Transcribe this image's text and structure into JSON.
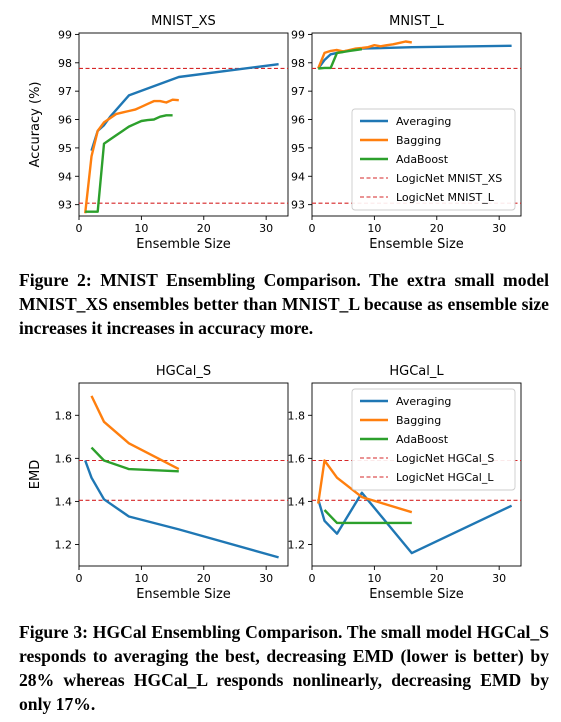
{
  "figures": [
    {
      "caption": "Figure 2: MNIST Ensembling Comparison. The extra small model MNIST_XS ensembles better than MNIST_L because as ensemble size increases it increases in accuracy more.",
      "ylabel": "Accuracy (%)",
      "xlabel": "Ensemble Size"
    },
    {
      "caption": "Figure 3: HGCal Ensembling Comparison. The small model HGCal_S responds to averaging the best, decreasing EMD (lower is better) by 28% whereas HGCal_L responds nonlinearly, decreasing EMD by only 17%.",
      "ylabel": "EMD",
      "xlabel": "Ensemble Size"
    }
  ],
  "chart_data": [
    {
      "type": "line",
      "title": "MNIST_XS",
      "xlabel": "Ensemble Size",
      "ylabel": "Accuracy (%)",
      "xlim": [
        0,
        33.5
      ],
      "ylim": [
        92.6,
        99.05
      ],
      "xticks": [
        0,
        10,
        20,
        30
      ],
      "yticks": [
        93,
        94,
        95,
        96,
        97,
        98,
        99
      ],
      "legend": "none",
      "series": [
        {
          "name": "Averaging",
          "color": "#1f77b4",
          "x": [
            2,
            3,
            4,
            5,
            8,
            16,
            32
          ],
          "y": [
            94.9,
            95.6,
            95.8,
            96.1,
            96.85,
            97.5,
            97.95
          ]
        },
        {
          "name": "Bagging",
          "color": "#ff7f0e",
          "x": [
            1,
            2,
            3,
            4,
            5,
            6,
            7,
            8,
            9,
            10,
            11,
            12,
            13,
            14,
            15,
            16
          ],
          "y": [
            92.7,
            94.7,
            95.6,
            95.9,
            96.05,
            96.2,
            96.25,
            96.3,
            96.35,
            96.45,
            96.55,
            96.65,
            96.65,
            96.6,
            96.7,
            96.68
          ]
        },
        {
          "name": "AdaBoost",
          "color": "#2ca02c",
          "x": [
            1,
            2,
            3,
            4,
            5,
            6,
            7,
            8,
            9,
            10,
            11,
            12,
            13,
            14,
            15
          ],
          "y": [
            92.75,
            92.75,
            92.75,
            95.15,
            95.3,
            95.45,
            95.6,
            95.75,
            95.85,
            95.95,
            95.98,
            96.0,
            96.1,
            96.15,
            96.15
          ]
        }
      ],
      "reference_lines": [
        {
          "name": "LogicNet MNIST_XS",
          "color": "#d62728",
          "y": 93.05
        },
        {
          "name": "LogicNet MNIST_L",
          "color": "#d62728",
          "y": 97.8
        }
      ]
    },
    {
      "type": "line",
      "title": "MNIST_L",
      "xlabel": "Ensemble Size",
      "ylabel": "",
      "xlim": [
        0,
        33.5
      ],
      "ylim": [
        92.6,
        99.05
      ],
      "xticks": [
        0,
        10,
        20,
        30
      ],
      "yticks": [
        93,
        94,
        95,
        96,
        97,
        98,
        99
      ],
      "legend": "lower-right",
      "series": [
        {
          "name": "Averaging",
          "color": "#1f77b4",
          "x": [
            1,
            2,
            3,
            4,
            5,
            8,
            16,
            32
          ],
          "y": [
            97.8,
            98.1,
            98.3,
            98.35,
            98.4,
            98.5,
            98.55,
            98.6
          ]
        },
        {
          "name": "Bagging",
          "color": "#ff7f0e",
          "x": [
            1,
            2,
            3,
            4,
            5,
            6,
            7,
            8,
            9,
            10,
            11,
            12,
            13,
            14,
            15,
            16
          ],
          "y": [
            97.8,
            98.35,
            98.42,
            98.45,
            98.4,
            98.45,
            98.5,
            98.52,
            98.55,
            98.62,
            98.58,
            98.62,
            98.65,
            98.7,
            98.75,
            98.72
          ]
        },
        {
          "name": "AdaBoost",
          "color": "#2ca02c",
          "x": [
            1,
            2,
            3,
            4,
            5,
            6,
            7,
            8
          ],
          "y": [
            97.8,
            97.82,
            97.82,
            98.35,
            98.38,
            98.42,
            98.45,
            98.48
          ]
        }
      ],
      "reference_lines": [
        {
          "name": "LogicNet MNIST_XS",
          "color": "#d62728",
          "y": 93.05
        },
        {
          "name": "LogicNet MNIST_L",
          "color": "#d62728",
          "y": 97.8
        }
      ]
    },
    {
      "type": "line",
      "title": "HGCal_S",
      "xlabel": "Ensemble Size",
      "ylabel": "EMD",
      "xlim": [
        0,
        33.5
      ],
      "ylim": [
        1.1,
        1.95
      ],
      "xticks": [
        0,
        10,
        20,
        30
      ],
      "yticks": [
        1.2,
        1.4,
        1.6,
        1.8
      ],
      "legend": "none",
      "series": [
        {
          "name": "Averaging",
          "color": "#1f77b4",
          "x": [
            1,
            2,
            4,
            8,
            16,
            32
          ],
          "y": [
            1.59,
            1.51,
            1.41,
            1.33,
            1.27,
            1.14
          ]
        },
        {
          "name": "Bagging",
          "color": "#ff7f0e",
          "x": [
            2,
            4,
            8,
            16
          ],
          "y": [
            1.89,
            1.77,
            1.67,
            1.55
          ]
        },
        {
          "name": "AdaBoost",
          "color": "#2ca02c",
          "x": [
            2,
            4,
            8,
            16
          ],
          "y": [
            1.65,
            1.59,
            1.55,
            1.54
          ]
        }
      ],
      "reference_lines": [
        {
          "name": "LogicNet HGCal_S",
          "color": "#d62728",
          "y": 1.59
        },
        {
          "name": "LogicNet HGCal_L",
          "color": "#d62728",
          "y": 1.405
        }
      ]
    },
    {
      "type": "line",
      "title": "HGCal_L",
      "xlabel": "Ensemble Size",
      "ylabel": "",
      "xlim": [
        0,
        33.5
      ],
      "ylim": [
        1.1,
        1.95
      ],
      "xticks": [
        0,
        10,
        20,
        30
      ],
      "yticks": [
        1.2,
        1.4,
        1.6,
        1.8
      ],
      "legend": "upper-right",
      "series": [
        {
          "name": "Averaging",
          "color": "#1f77b4",
          "x": [
            1,
            2,
            4,
            8,
            16,
            32
          ],
          "y": [
            1.41,
            1.31,
            1.25,
            1.44,
            1.16,
            1.38
          ]
        },
        {
          "name": "Bagging",
          "color": "#ff7f0e",
          "x": [
            1,
            2,
            4,
            8,
            16
          ],
          "y": [
            1.39,
            1.59,
            1.51,
            1.42,
            1.35
          ]
        },
        {
          "name": "AdaBoost",
          "color": "#2ca02c",
          "x": [
            2,
            4,
            8,
            16
          ],
          "y": [
            1.36,
            1.3,
            1.3,
            1.3
          ]
        }
      ],
      "reference_lines": [
        {
          "name": "LogicNet HGCal_S",
          "color": "#d62728",
          "y": 1.59
        },
        {
          "name": "LogicNet HGCal_L",
          "color": "#d62728",
          "y": 1.405
        }
      ]
    }
  ]
}
